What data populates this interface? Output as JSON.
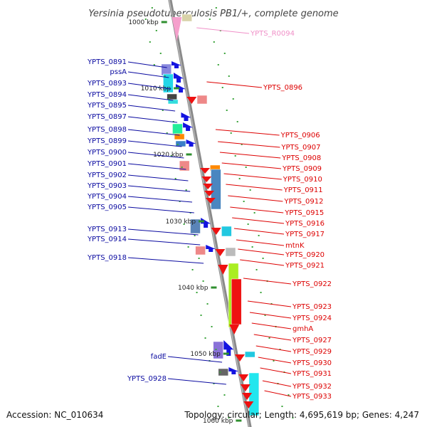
{
  "title": "Yersinia pseudotuberculosis PB1/+, complete genome",
  "footer": {
    "accession": "Accession: NC_010634",
    "topology": "Topology: circular; Length: 4,695,619 bp; Genes: 4,247"
  },
  "ticks": [
    "1000 kbp",
    "1010 kbp",
    "1020 kbp",
    "1030 kbp",
    "1040 kbp",
    "1050 kbp",
    "1060 kbp"
  ],
  "left_labels": [
    "YPTS_0891",
    "pssA",
    "YPTS_0893",
    "YPTS_0894",
    "YPTS_0895",
    "YPTS_0897",
    "YPTS_0898",
    "YPTS_0899",
    "YPTS_0900",
    "YPTS_0901",
    "YPTS_0902",
    "YPTS_0903",
    "YPTS_0904",
    "YPTS_0905",
    "YPTS_0913",
    "YPTS_0914",
    "YPTS_0918",
    "fadE",
    "YPTS_0928"
  ],
  "right_labels": [
    "YPTS_R0094",
    "YPTS_0896",
    "YPTS_0906",
    "YPTS_0907",
    "YPTS_0908",
    "YPTS_0909",
    "YPTS_0910",
    "YPTS_0911",
    "YPTS_0912",
    "YPTS_0915",
    "YPTS_0916",
    "YPTS_0917",
    "mtnK",
    "YPTS_0920",
    "YPTS_0921",
    "YPTS_0922",
    "YPTS_0923",
    "YPTS_0924",
    "gmhA",
    "YPTS_0927",
    "YPTS_0929",
    "YPTS_0930",
    "YPTS_0931",
    "YPTS_0932",
    "YPTS_0933"
  ],
  "colors": {
    "backbone": "#8a8a8a",
    "forward_strand": "#1414e0",
    "reverse_strand": "#ee1111",
    "rna": "#f090c8",
    "tick_marks": "#2f8f2f"
  }
}
